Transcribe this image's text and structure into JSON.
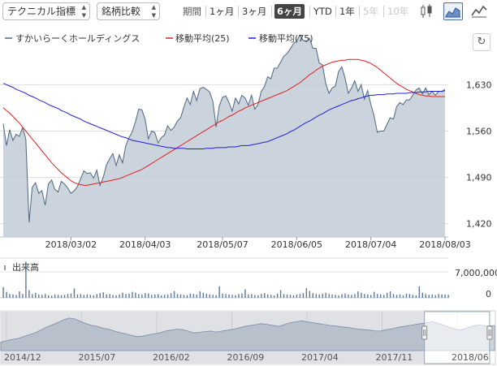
{
  "toolbar": {
    "technical_label": "テクニカル指標",
    "compare_label": "銘柄比較",
    "period_label": "期間",
    "periods": [
      {
        "label": "1ヶ月",
        "state": "normal"
      },
      {
        "label": "3ヶ月",
        "state": "normal"
      },
      {
        "label": "6ヶ月",
        "state": "active"
      },
      {
        "label": "YTD",
        "state": "normal"
      },
      {
        "label": "1年",
        "state": "normal"
      },
      {
        "label": "5年",
        "state": "disabled"
      },
      {
        "label": "10年",
        "state": "disabled"
      }
    ],
    "icons": [
      "candlestick-icon",
      "area-chart-icon",
      "line-chart-icon"
    ]
  },
  "legend": {
    "price_name": "すかいらーくホールディングス",
    "ma25_name": "移動平均(25)",
    "ma75_name": "移動平均(75)"
  },
  "colors": {
    "price_line": "#4c6782",
    "price_fill": "#c5ced8",
    "ma25": "#e02020",
    "ma75": "#2020d0",
    "volume": "#5b7a9a"
  },
  "chart_data": {
    "type": "area",
    "ylim": [
      1400,
      1715
    ],
    "yticks": [
      1420,
      1490,
      1560,
      1630
    ],
    "ytick_labels": [
      "1,420",
      "1,490",
      "1,560",
      "1,630"
    ],
    "x_tick_labels": [
      "2018/03/02",
      "2018/04/03",
      "2018/05/07",
      "2018/06/05",
      "2018/07/04",
      "2018/08/03"
    ],
    "x_tick_index": [
      21,
      44,
      68,
      91,
      114,
      137
    ],
    "series": [
      {
        "name": "すかいらーくホールディングス",
        "values": [
          1571,
          1538,
          1562,
          1546,
          1555,
          1552,
          1565,
          1548,
          1422,
          1475,
          1482,
          1466,
          1470,
          1448,
          1480,
          1486,
          1472,
          1468,
          1484,
          1480,
          1474,
          1466,
          1470,
          1476,
          1488,
          1500,
          1496,
          1497,
          1489,
          1501,
          1478,
          1490,
          1509,
          1518,
          1526,
          1508,
          1524,
          1512,
          1538,
          1550,
          1559,
          1574,
          1593,
          1592,
          1578,
          1548,
          1560,
          1558,
          1542,
          1550,
          1554,
          1568,
          1561,
          1566,
          1575,
          1580,
          1596,
          1610,
          1600,
          1620,
          1606,
          1624,
          1626,
          1623,
          1619,
          1605,
          1566,
          1598,
          1611,
          1613,
          1603,
          1590,
          1610,
          1601,
          1614,
          1610,
          1599,
          1614,
          1593,
          1600,
          1620,
          1627,
          1642,
          1639,
          1655,
          1655,
          1664,
          1673,
          1677,
          1684,
          1692,
          1696,
          1705,
          1697,
          1695,
          1700,
          1685,
          1685,
          1663,
          1660,
          1632,
          1617,
          1625,
          1628,
          1650,
          1657,
          1640,
          1617,
          1625,
          1636,
          1620,
          1630,
          1608,
          1621,
          1600,
          1583,
          1558,
          1560,
          1560,
          1570,
          1580,
          1578,
          1597,
          1603,
          1600,
          1607,
          1607,
          1614,
          1622,
          1625,
          1616,
          1625,
          1615,
          1620,
          1614,
          1620,
          1620,
          1623
        ]
      },
      {
        "name": "移動平均(25)",
        "values": [
          1595,
          1591,
          1587,
          1582,
          1577,
          1572,
          1566,
          1560,
          1554,
          1548,
          1542,
          1536,
          1530,
          1524,
          1518,
          1512,
          1507,
          1502,
          1497,
          1493,
          1489,
          1485,
          1482,
          1480,
          1479,
          1478,
          1478,
          1479,
          1480,
          1481,
          1482,
          1483,
          1484,
          1485,
          1486,
          1487,
          1488,
          1490,
          1492,
          1494,
          1496,
          1498,
          1500,
          1502,
          1505,
          1508,
          1511,
          1514,
          1517,
          1520,
          1523,
          1526,
          1529,
          1532,
          1535,
          1538,
          1541,
          1544,
          1547,
          1550,
          1553,
          1556,
          1559,
          1562,
          1565,
          1568,
          1571,
          1574,
          1576,
          1579,
          1582,
          1584,
          1587,
          1590,
          1592,
          1595,
          1597,
          1599,
          1601,
          1603,
          1605,
          1607,
          1609,
          1611,
          1613,
          1615,
          1617,
          1619,
          1621,
          1624,
          1627,
          1630,
          1633,
          1637,
          1641,
          1645,
          1648,
          1652,
          1655,
          1658,
          1660,
          1662,
          1664,
          1665,
          1666,
          1667,
          1667,
          1668,
          1668,
          1668,
          1668,
          1667,
          1666,
          1664,
          1662,
          1659,
          1656,
          1652,
          1648,
          1644,
          1640,
          1636,
          1632,
          1629,
          1626,
          1623,
          1621,
          1619,
          1617,
          1615,
          1614,
          1613,
          1613,
          1612,
          1612,
          1612,
          1612,
          1612
        ]
      },
      {
        "name": "移動平均(75)",
        "values": [
          1632,
          1630,
          1628,
          1626,
          1623,
          1621,
          1619,
          1617,
          1614,
          1612,
          1610,
          1607,
          1605,
          1603,
          1600,
          1598,
          1596,
          1594,
          1591,
          1589,
          1587,
          1584,
          1582,
          1580,
          1578,
          1575,
          1573,
          1571,
          1569,
          1567,
          1565,
          1563,
          1561,
          1559,
          1557,
          1555,
          1553,
          1551,
          1550,
          1548,
          1546,
          1545,
          1544,
          1543,
          1542,
          1541,
          1540,
          1539,
          1538,
          1537,
          1536,
          1535,
          1535,
          1534,
          1534,
          1534,
          1534,
          1533,
          1533,
          1533,
          1533,
          1533,
          1533,
          1534,
          1534,
          1534,
          1535,
          1535,
          1535,
          1535,
          1536,
          1536,
          1536,
          1537,
          1538,
          1538,
          1538,
          1539,
          1540,
          1541,
          1542,
          1543,
          1544,
          1546,
          1548,
          1550,
          1552,
          1554,
          1556,
          1559,
          1561,
          1564,
          1567,
          1570,
          1573,
          1575,
          1578,
          1581,
          1584,
          1586,
          1589,
          1592,
          1594,
          1596,
          1598,
          1600,
          1602,
          1604,
          1606,
          1607,
          1609,
          1610,
          1612,
          1613,
          1614,
          1614,
          1615,
          1615,
          1615,
          1616,
          1616,
          1616,
          1617,
          1617,
          1617,
          1617,
          1618,
          1618,
          1618,
          1619,
          1619,
          1619,
          1620,
          1620,
          1620,
          1620,
          1620,
          1621
        ]
      }
    ],
    "volume": {
      "label": "出来高",
      "ylim": [
        0,
        7000000
      ],
      "ytick_labels": [
        "7,000,000",
        "0"
      ],
      "values": [
        2500000,
        1400000,
        900000,
        800000,
        700000,
        1500000,
        900000,
        8500000,
        1800000,
        900000,
        1200000,
        800000,
        700000,
        900000,
        600000,
        500000,
        800000,
        700000,
        600000,
        700000,
        900000,
        1000000,
        2200000,
        800000,
        900000,
        700000,
        800000,
        700000,
        600000,
        900000,
        1100000,
        1300000,
        800000,
        900000,
        700000,
        600000,
        800000,
        1200000,
        900000,
        1000000,
        1400000,
        1200000,
        900000,
        800000,
        1100000,
        1000000,
        700000,
        800000,
        900000,
        600000,
        700000,
        800000,
        1100000,
        1600000,
        900000,
        800000,
        700000,
        600000,
        1000000,
        900000,
        800000,
        1500000,
        1200000,
        900000,
        800000,
        700000,
        600000,
        2700000,
        1000000,
        900000,
        800000,
        700000,
        600000,
        900000,
        1000000,
        2000000,
        800000,
        900000,
        700000,
        600000,
        900000,
        1100000,
        800000,
        700000,
        600000,
        1000000,
        1800000,
        900000,
        800000,
        700000,
        600000,
        800000,
        900000,
        1100000,
        2300000,
        1600000,
        1100000,
        900000,
        800000,
        1000000,
        1200000,
        900000,
        800000,
        700000,
        600000,
        900000,
        1000000,
        800000,
        700000,
        900000,
        1500000,
        1200000,
        900000,
        800000,
        700000,
        1400000,
        900000,
        800000,
        700000,
        1200000,
        1500000,
        900000,
        700000,
        800000,
        600000,
        1000000,
        900000,
        700000,
        600000,
        2700000,
        1200000,
        900000,
        700000,
        800000,
        600000,
        900000,
        800000,
        800000,
        700000
      ]
    },
    "navigator": {
      "labels": [
        "2014/12",
        "2015/07",
        "2016/02",
        "2016/09",
        "2017/04",
        "2017/11",
        "2018/06"
      ],
      "values": [
        1440,
        1455,
        1470,
        1480,
        1500,
        1520,
        1540,
        1570,
        1600,
        1625,
        1650,
        1680,
        1700,
        1690,
        1665,
        1640,
        1620,
        1610,
        1590,
        1580,
        1560,
        1545,
        1530,
        1515,
        1500,
        1505,
        1520,
        1530,
        1540,
        1560,
        1570,
        1580,
        1575,
        1560,
        1540,
        1545,
        1555,
        1560,
        1550,
        1560,
        1570,
        1580,
        1595,
        1610,
        1620,
        1630,
        1640,
        1630,
        1620,
        1610,
        1630,
        1650,
        1660,
        1670,
        1660,
        1650,
        1640,
        1630,
        1620,
        1615,
        1605,
        1600,
        1590,
        1580,
        1575,
        1570,
        1560,
        1560,
        1575,
        1585,
        1600,
        1610,
        1620,
        1630,
        1640,
        1650,
        1660,
        1645,
        1625,
        1600,
        1580,
        1570,
        1590,
        1610,
        1625,
        1620,
        1615,
        1620
      ],
      "ylim": [
        1350,
        1760
      ],
      "selection": [
        0.858,
        0.99
      ]
    }
  }
}
